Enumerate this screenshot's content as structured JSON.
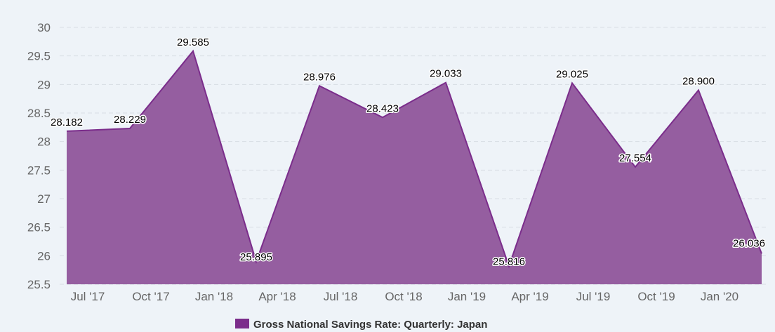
{
  "chart_data": {
    "type": "area",
    "title": "",
    "xlabel": "",
    "ylabel": "",
    "ylim": [
      25.5,
      30
    ],
    "yticks": [
      "25.5",
      "26",
      "26.5",
      "27",
      "27.5",
      "28",
      "28.5",
      "29",
      "29.5",
      "30"
    ],
    "xticks": [
      "Jul '17",
      "Oct '17",
      "Jan '18",
      "Apr '18",
      "Jul '18",
      "Oct '18",
      "Jan '19",
      "Apr '19",
      "Jul '19",
      "Oct '19",
      "Jan '20"
    ],
    "grid": true,
    "legend_position": "bottom-center",
    "series": [
      {
        "name": "Gross National Savings Rate: Quarterly: Japan",
        "color": "#7b2d8b",
        "fill": "#955ea0",
        "values": [
          28.182,
          28.229,
          29.585,
          25.895,
          28.976,
          28.423,
          29.033,
          25.816,
          29.025,
          27.554,
          28.9,
          26.036
        ],
        "labels": [
          "28.182",
          "28.229",
          "29.585",
          "25.895",
          "28.976",
          "28.423",
          "29.033",
          "25.816",
          "29.025",
          "27.554",
          "28.900",
          "26.036"
        ]
      }
    ]
  }
}
